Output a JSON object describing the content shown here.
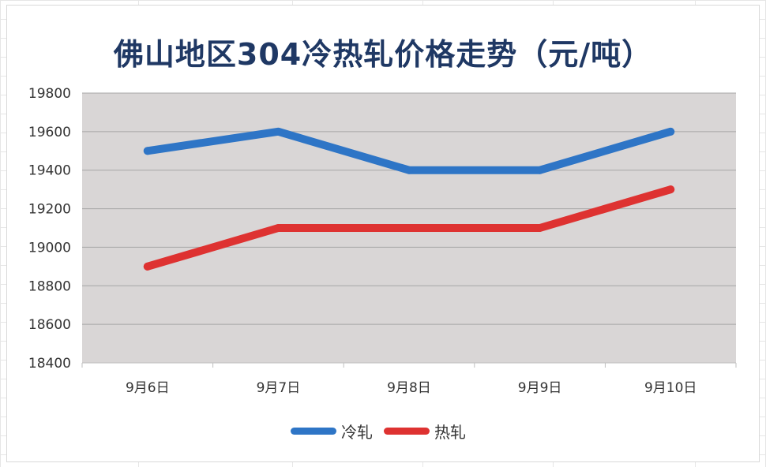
{
  "chart_data": {
    "type": "line",
    "title": "佛山地区304冷热轧价格走势（元/吨）",
    "categories": [
      "9月6日",
      "9月7日",
      "9月8日",
      "9月9日",
      "9月10日"
    ],
    "series": [
      {
        "name": "冷轧",
        "color": "#2e75c6",
        "values": [
          19500,
          19600,
          19400,
          19400,
          19600
        ]
      },
      {
        "name": "热轧",
        "color": "#de3231",
        "values": [
          18900,
          19100,
          19100,
          19100,
          19300
        ]
      }
    ],
    "ylim": [
      18400,
      19800
    ],
    "yticks": [
      18400,
      18600,
      18800,
      19000,
      19200,
      19400,
      19600,
      19800
    ],
    "ytick_labels": [
      "18400",
      "18600",
      "18800",
      "19000",
      "19200",
      "19400",
      "19600",
      "19800"
    ],
    "grid": true,
    "plot_background": "#d9d6d6",
    "legend_position": "bottom"
  }
}
